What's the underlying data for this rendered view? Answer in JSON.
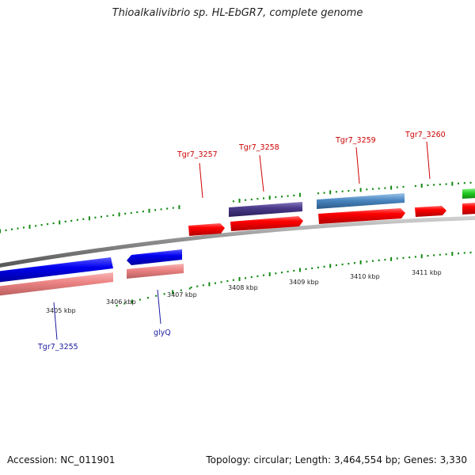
{
  "title": "Thioalkalivibrio sp. HL-EbGR7, complete genome",
  "footer": {
    "accession": "Accession: NC_011901",
    "summary": "Topology: circular; Length: 3,464,554 bp; Genes: 3,330"
  },
  "ticks": [
    {
      "label": "3405 kbp"
    },
    {
      "label": "3406 kbp"
    },
    {
      "label": "3407 kbp"
    },
    {
      "label": "3408 kbp"
    },
    {
      "label": "3409 kbp"
    },
    {
      "label": "3410 kbp"
    },
    {
      "label": "3411 kbp"
    }
  ],
  "genes": [
    {
      "label": "Tgr7_3255",
      "strand": "reverse"
    },
    {
      "label": "glyQ",
      "strand": "reverse"
    },
    {
      "label": "Tgr7_3257",
      "strand": "forward"
    },
    {
      "label": "Tgr7_3258",
      "strand": "forward"
    },
    {
      "label": "Tgr7_3259",
      "strand": "forward"
    },
    {
      "label": "Tgr7_3260",
      "strand": "forward"
    }
  ],
  "colors": {
    "cds_forward": "#ff0000",
    "cds_reverse": "#0000ee",
    "gene_reverse": "#f08a8a",
    "feature_purple": "#4a3a8a",
    "feature_steelblue": "#4a86c0",
    "feature_green": "#22cc22",
    "gc_skew": "#118811",
    "backbone": "#888888",
    "label_forward": "#cc0000",
    "label_reverse": "#1a1aa0"
  }
}
